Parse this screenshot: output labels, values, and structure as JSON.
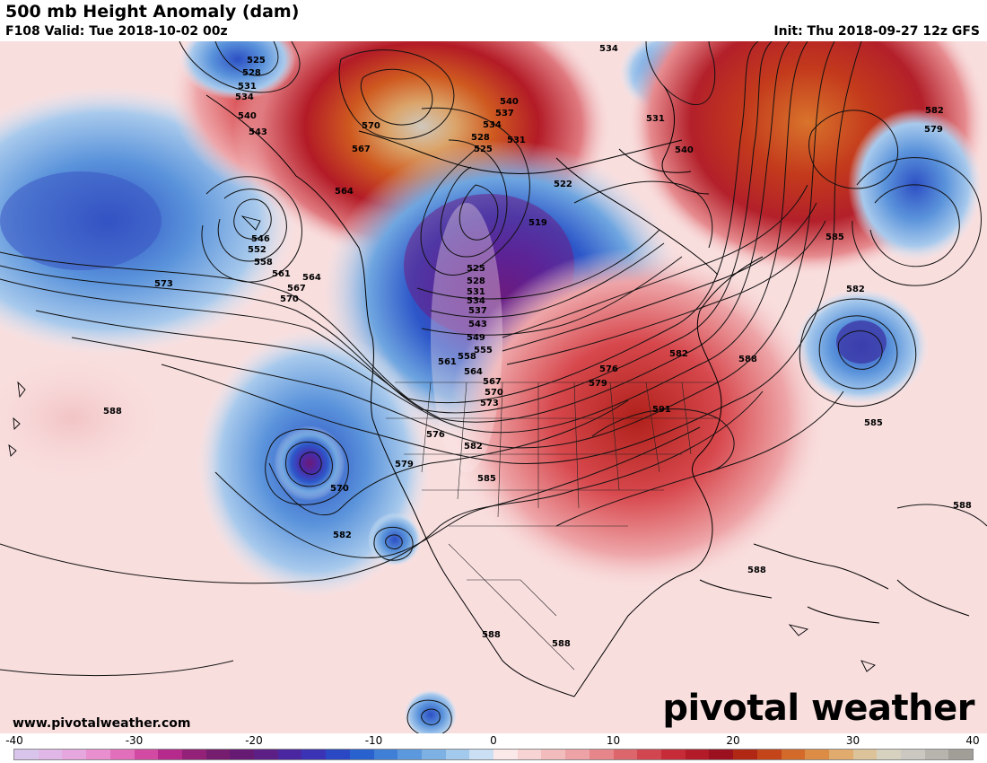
{
  "header": {
    "title": "500 mb Height Anomaly (dam)",
    "valid": "F108 Valid: Tue 2018-10-02 00z",
    "init": "Init: Thu 2018-09-27 12z GFS"
  },
  "footer": {
    "website": "www.pivotalweather.com",
    "brand": "pivotal weather"
  },
  "colorbar": {
    "min": -40,
    "max": 40,
    "tick_labels": [
      "-40",
      "-30",
      "-20",
      "-10",
      "0",
      "10",
      "20",
      "30",
      "40"
    ],
    "colors": [
      "#d9c4ec",
      "#e0b7e6",
      "#e6a7de",
      "#e98fcf",
      "#e26fbb",
      "#d24aa2",
      "#b62a8c",
      "#932178",
      "#771d70",
      "#661a73",
      "#5b1f86",
      "#4a27a0",
      "#3a33b5",
      "#2b48c4",
      "#2962cf",
      "#3f7fd6",
      "#5c98dd",
      "#7db1e3",
      "#a3c9ec",
      "#cadff3",
      "#fbe8e8",
      "#f7d3d3",
      "#f2bcbd",
      "#eda2a5",
      "#e6858a",
      "#dd666c",
      "#d2474f",
      "#c52c37",
      "#b31b28",
      "#9c1120",
      "#b02814",
      "#c5451a",
      "#d46a2a",
      "#dd8c45",
      "#e0ab6d",
      "#dcc39a",
      "#d6d2bf",
      "#cac8c0",
      "#b7b4ae",
      "#a19e98"
    ]
  },
  "height_labels": [
    "525",
    "528",
    "531",
    "534",
    "540",
    "543",
    "546",
    "552",
    "558",
    "561",
    "564",
    "567",
    "570",
    "573",
    "570",
    "567",
    "564",
    "540",
    "537",
    "534",
    "531",
    "528",
    "525",
    "522",
    "519",
    "534",
    "525",
    "528",
    "531",
    "534",
    "537",
    "543",
    "549",
    "555",
    "558",
    "561",
    "564",
    "567",
    "570",
    "573",
    "576",
    "579",
    "582",
    "585",
    "576",
    "579",
    "582",
    "588",
    "591",
    "531",
    "540",
    "582",
    "579",
    "585",
    "582",
    "588",
    "585",
    "588",
    "588",
    "588",
    "588",
    "570",
    "582"
  ]
}
